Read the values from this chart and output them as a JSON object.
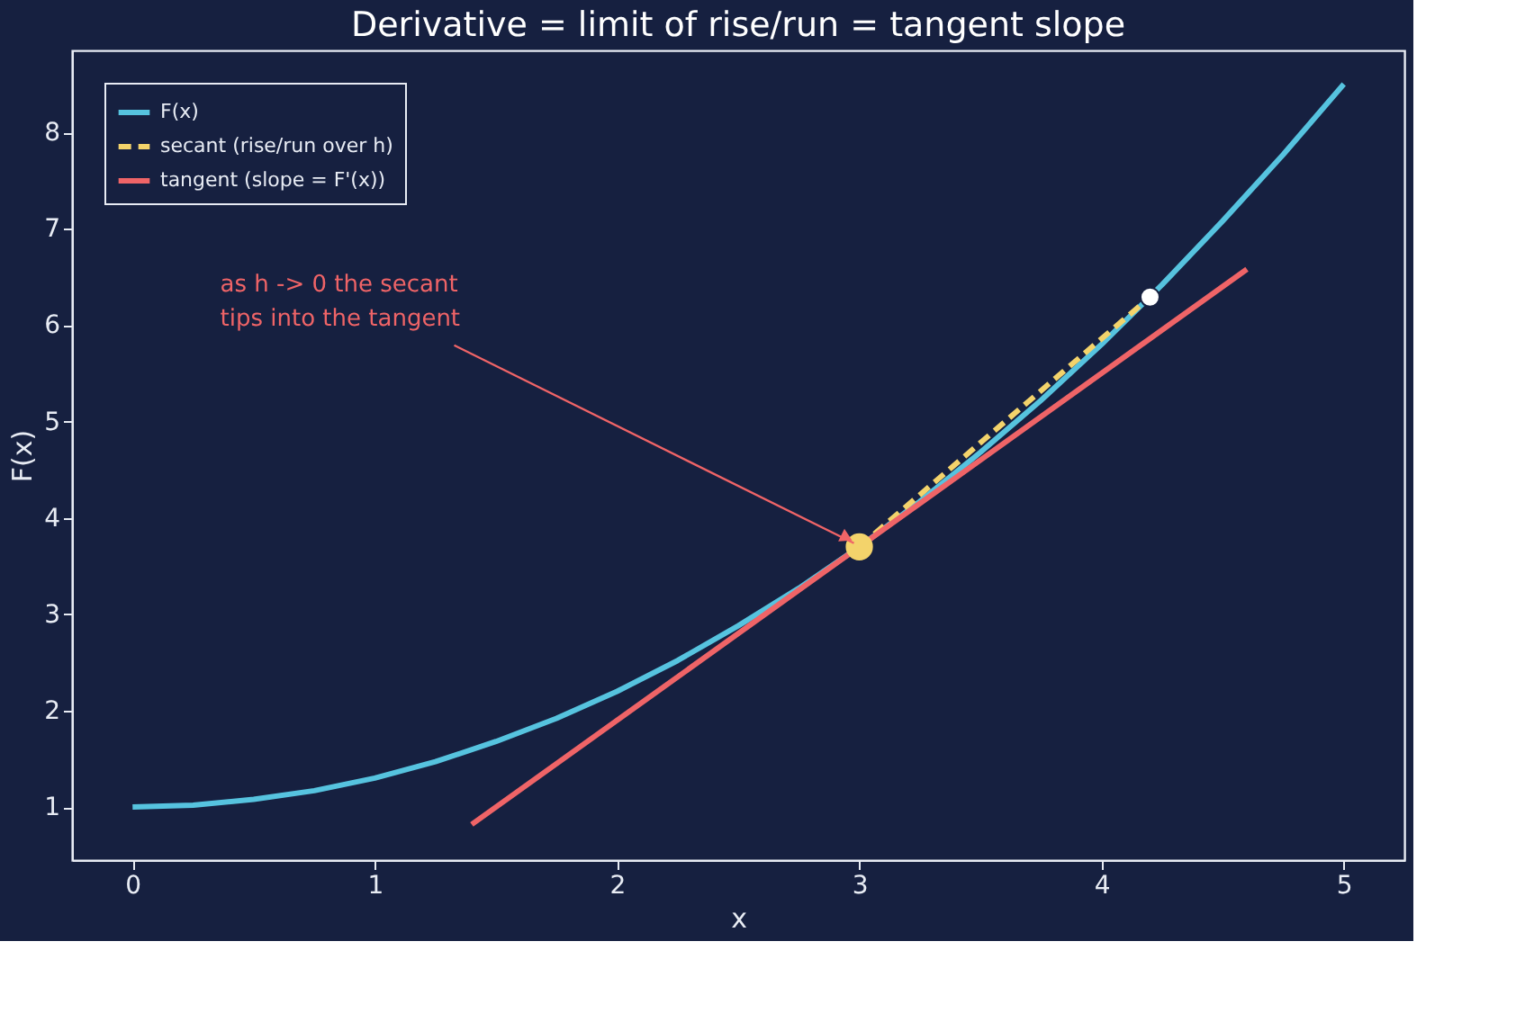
{
  "chart_data": {
    "type": "line",
    "title": "Derivative = limit of rise/run = tangent slope",
    "xlabel": "x",
    "ylabel": "F(x)",
    "xlim": [
      -0.25,
      5.25
    ],
    "ylim": [
      0.45,
      8.85
    ],
    "xticks": [
      0,
      1,
      2,
      3,
      4,
      5
    ],
    "yticks": [
      1,
      2,
      3,
      4,
      5,
      6,
      7,
      8
    ],
    "grid": false,
    "legend": "top left",
    "series": [
      {
        "name": "F(x)",
        "color": "#56c3df",
        "x": [
          0,
          0.25,
          0.5,
          0.75,
          1,
          1.25,
          1.5,
          1.75,
          2,
          2.25,
          2.5,
          2.75,
          3,
          3.25,
          3.5,
          3.75,
          4,
          4.25,
          4.5,
          4.75,
          5
        ],
        "values": [
          1,
          1.02,
          1.08,
          1.17,
          1.3,
          1.47,
          1.68,
          1.92,
          2.2,
          2.52,
          2.88,
          3.27,
          3.7,
          4.17,
          4.68,
          5.22,
          5.8,
          6.42,
          7.08,
          7.77,
          8.5
        ],
        "line_style": "solid"
      },
      {
        "name": "secant (rise/run over h)",
        "color": "#f3d36b",
        "x": [
          3,
          4.2
        ],
        "values": [
          3.7,
          6.29
        ],
        "line_style": "dashed"
      },
      {
        "name": "tangent (slope = F'(x))",
        "color": "#ef6467",
        "x": [
          1.4,
          4.6
        ],
        "values": [
          0.82,
          6.58
        ],
        "line_style": "solid"
      },
      {
        "type": "scatter",
        "color": "#f3d36b",
        "x": [
          3
        ],
        "values": [
          3.7
        ],
        "marker": "circle"
      },
      {
        "type": "scatter",
        "color": "#ffffff",
        "x": [
          4.2
        ],
        "values": [
          6.29
        ],
        "marker": "circle"
      }
    ],
    "annotations": [
      {
        "text": "as h -> 0 the secant\ntips into the tangent",
        "x": 3,
        "y": 3.7
      }
    ]
  }
}
